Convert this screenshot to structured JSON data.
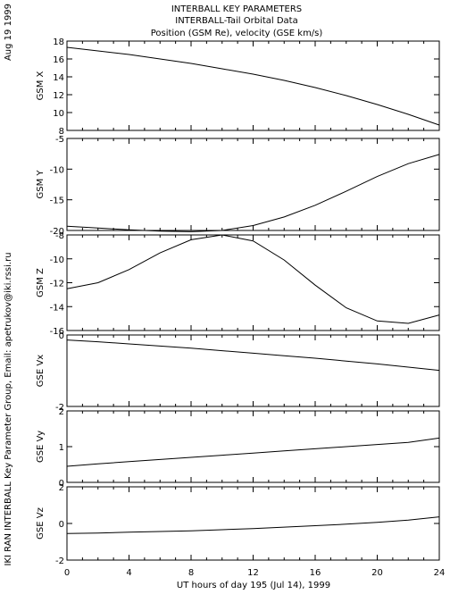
{
  "header": {
    "line1": "INTERBALL KEY PARAMETERS",
    "line2": "INTERBALL-Tail Orbital Data",
    "line3": "Position (GSM Re), velocity (GSE km/s)"
  },
  "side": {
    "date": "Aug 19 1999",
    "credit": "IKI RAN INTERBALL Key Parameter Group, Email: apetrukov@iki.rssi.ru"
  },
  "chart_data": {
    "type": "line",
    "x_axis": {
      "label": "UT hours of day 195 (Jul 14), 1999",
      "range": [
        0,
        24
      ],
      "ticks": [
        0,
        4,
        8,
        12,
        16,
        20,
        24
      ],
      "tick_labels": [
        "0",
        "4",
        "8",
        "12",
        "16",
        "20",
        "24"
      ]
    },
    "x": [
      0,
      2,
      4,
      6,
      8,
      10,
      12,
      14,
      16,
      18,
      20,
      22,
      24
    ],
    "panels": [
      {
        "ylabel": "GSM X",
        "ylim": [
          8,
          18
        ],
        "ticks": [
          8,
          10,
          12,
          14,
          16,
          18
        ],
        "tick_labels": [
          "8",
          "10",
          "12",
          "14",
          "16",
          "18"
        ],
        "values": [
          17.3,
          16.9,
          16.5,
          16.0,
          15.5,
          14.9,
          14.3,
          13.6,
          12.8,
          11.9,
          10.9,
          9.8,
          8.6
        ]
      },
      {
        "ylabel": "GSM Y",
        "ylim": [
          -20,
          -5
        ],
        "ticks": [
          -20,
          -15,
          -10,
          -5
        ],
        "tick_labels": [
          "-20",
          "-15",
          "-10",
          "-5"
        ],
        "values": [
          -19.3,
          -19.6,
          -19.9,
          -20.1,
          -20.2,
          -20.0,
          -19.2,
          -17.8,
          -15.9,
          -13.6,
          -11.2,
          -9.1,
          -7.6
        ]
      },
      {
        "ylabel": "GSM Z",
        "ylim": [
          -16,
          -8
        ],
        "ticks": [
          -16,
          -14,
          -12,
          -10,
          -8
        ],
        "tick_labels": [
          "-16",
          "-14",
          "-12",
          "-10",
          "-8"
        ],
        "values": [
          -12.5,
          -12.0,
          -10.9,
          -9.5,
          -8.4,
          -8.0,
          -8.5,
          -10.1,
          -12.2,
          -14.1,
          -15.2,
          -15.4,
          -14.7
        ]
      },
      {
        "ylabel": "GSE Vx",
        "ylim": [
          -2,
          0
        ],
        "ticks": [
          -2,
          0
        ],
        "tick_labels": [
          "-2",
          "0"
        ],
        "values": [
          -0.14,
          -0.19,
          -0.25,
          -0.31,
          -0.37,
          -0.44,
          -0.51,
          -0.58,
          -0.65,
          -0.73,
          -0.81,
          -0.9,
          -0.99
        ]
      },
      {
        "ylabel": "GSE Vy",
        "ylim": [
          0,
          2
        ],
        "ticks": [
          0,
          1,
          2
        ],
        "tick_labels": [
          "0",
          "1",
          "2"
        ],
        "values": [
          0.45,
          0.52,
          0.58,
          0.64,
          0.7,
          0.76,
          0.82,
          0.88,
          0.94,
          1.0,
          1.06,
          1.12,
          1.24
        ]
      },
      {
        "ylabel": "GSE Vz",
        "ylim": [
          -2,
          2
        ],
        "ticks": [
          -2,
          0,
          2
        ],
        "tick_labels": [
          "-2",
          "0",
          "2"
        ],
        "values": [
          -0.55,
          -0.52,
          -0.48,
          -0.44,
          -0.4,
          -0.34,
          -0.28,
          -0.2,
          -0.12,
          -0.04,
          0.06,
          0.18,
          0.36
        ]
      }
    ]
  }
}
